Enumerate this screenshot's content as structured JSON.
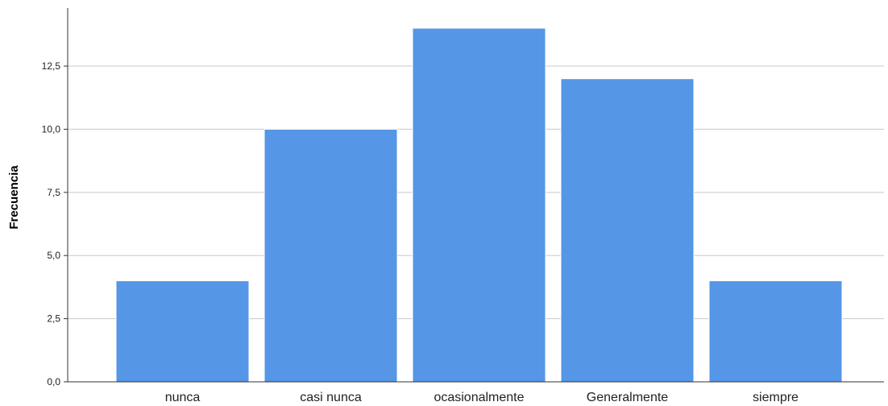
{
  "chart_data": {
    "type": "bar",
    "categories": [
      "nunca",
      "casi nunca",
      "ocasionalmente",
      "Generalmente",
      "siempre"
    ],
    "values": [
      4,
      10,
      14,
      12,
      4
    ],
    "ylabel": "Frecuencia",
    "xlabel": "",
    "ylim": [
      0,
      14.5
    ],
    "yticks": [
      0,
      2.5,
      5,
      7.5,
      10,
      12.5
    ],
    "ytick_labels": [
      "0,0",
      "2,5",
      "5,0",
      "7,5",
      "10,0",
      "12,5"
    ],
    "grid": true,
    "bar_color": "#5596E6",
    "bar_edge_color": "#ffffff",
    "grid_color": "#c8c8c8"
  }
}
